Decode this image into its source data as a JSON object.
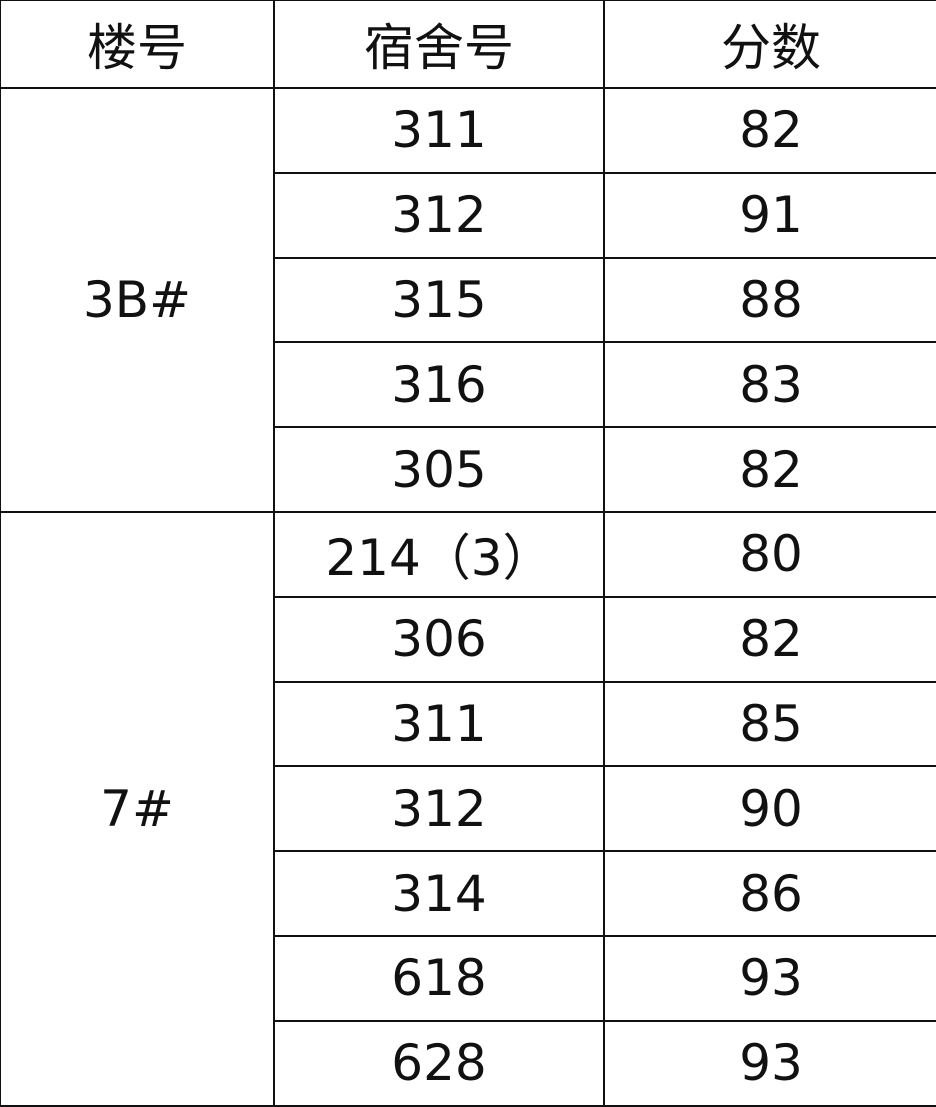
{
  "headers": [
    "楼号",
    "宿舍号",
    "分数"
  ],
  "groups": [
    {
      "building": "3B#",
      "rows": [
        {
          "room": "311",
          "score": "82"
        },
        {
          "room": "312",
          "score": "91"
        },
        {
          "room": "315",
          "score": "88"
        },
        {
          "room": "316",
          "score": "83"
        },
        {
          "room": "305",
          "score": "82"
        }
      ]
    },
    {
      "building": "7#",
      "rows": [
        {
          "room": "214（3）",
          "score": "80"
        },
        {
          "room": "306",
          "score": "82"
        },
        {
          "room": "311",
          "score": "85"
        },
        {
          "room": "312",
          "score": "90"
        },
        {
          "room": "314",
          "score": "86"
        },
        {
          "room": "618",
          "score": "93"
        },
        {
          "room": "628",
          "score": "93"
        }
      ]
    }
  ]
}
